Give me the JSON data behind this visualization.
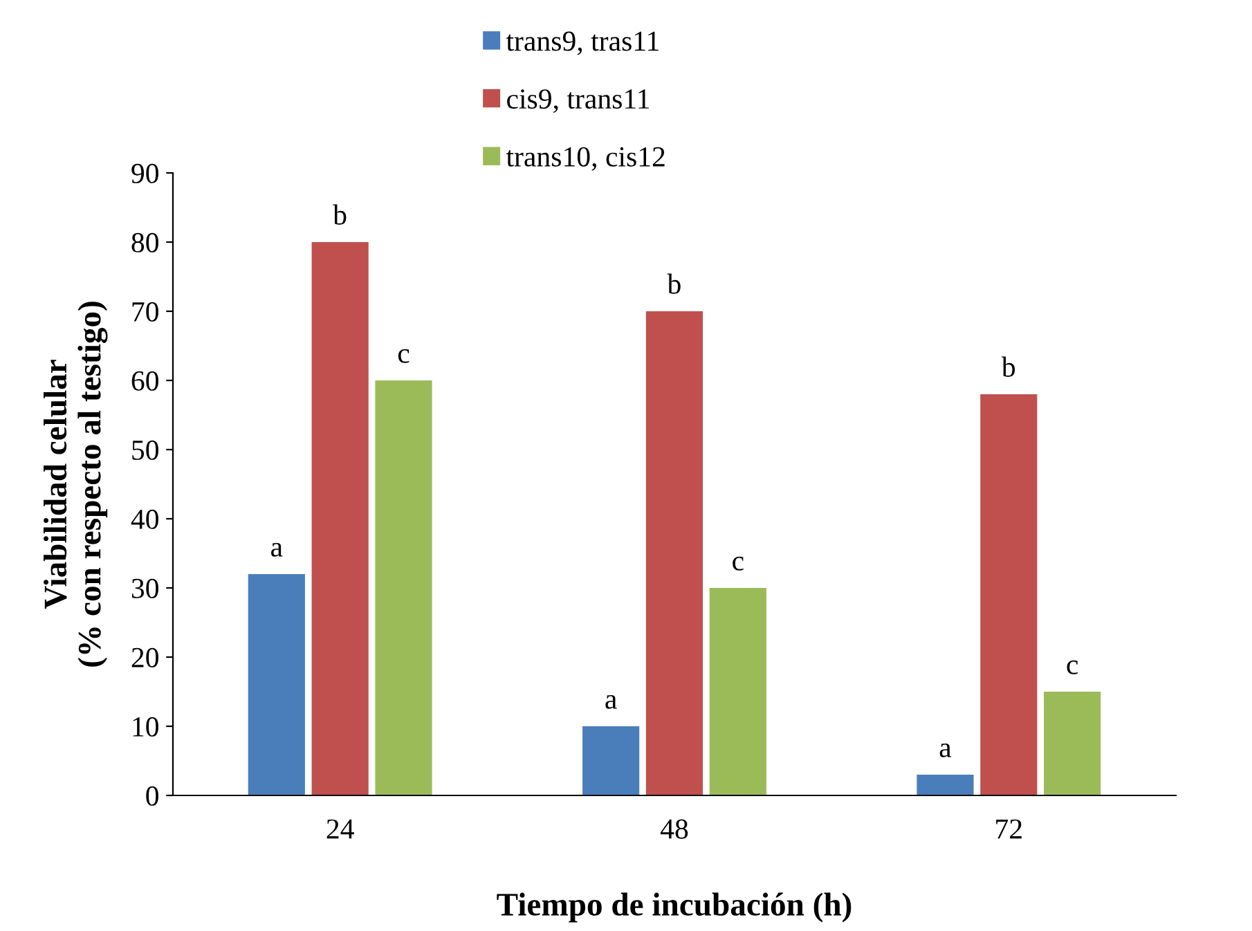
{
  "chart_data": {
    "type": "bar",
    "xlabel": "Tiempo de incubación (h)",
    "ylabel": "Viabilidad celular\n(% con respecto al testigo)",
    "categories": [
      "24",
      "48",
      "72"
    ],
    "series": [
      {
        "name": "trans9, tras11",
        "color": "#4a7ebb",
        "values": [
          32,
          10,
          3
        ],
        "value_labels": [
          "a",
          "a",
          "a"
        ]
      },
      {
        "name": "cis9, trans11",
        "color": "#c0504d",
        "values": [
          80,
          70,
          58
        ],
        "value_labels": [
          "b",
          "b",
          "b"
        ]
      },
      {
        "name": "trans10, cis12",
        "color": "#9bbb59",
        "values": [
          60,
          30,
          15
        ],
        "value_labels": [
          "c",
          "c",
          "c"
        ]
      }
    ],
    "ylim": [
      0,
      90
    ],
    "yticks": [
      0,
      10,
      20,
      30,
      40,
      50,
      60,
      70,
      80,
      90
    ],
    "grid": false,
    "legend": "top"
  }
}
